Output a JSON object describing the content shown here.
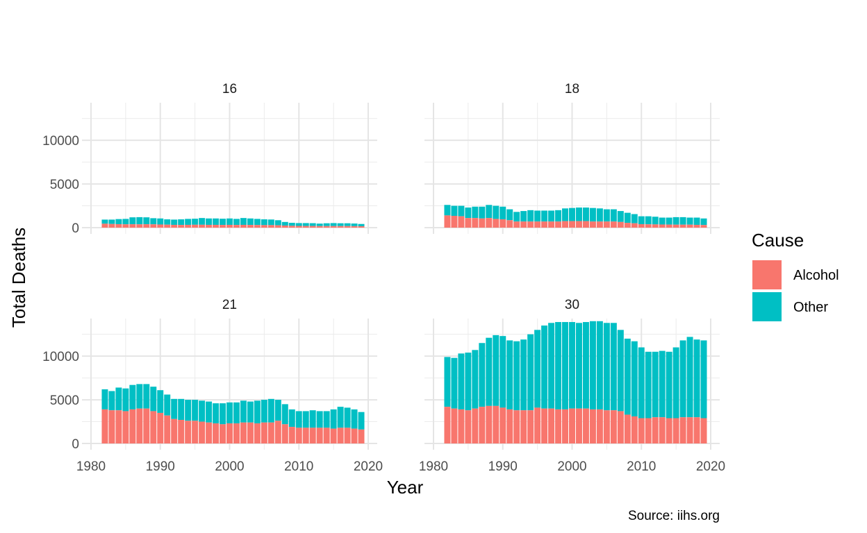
{
  "chart_data": {
    "type": "bar",
    "stacked": true,
    "xlabel": "Year",
    "ylabel": "Total Deaths",
    "caption": "Source: iihs.org",
    "xlim": [
      1980,
      2020
    ],
    "ylim": [
      0,
      14000
    ],
    "x_ticks": [
      1980,
      1990,
      2000,
      2010,
      2020
    ],
    "y_ticks": [
      0,
      5000,
      10000
    ],
    "grid": true,
    "legend": {
      "title": "Cause",
      "position": "right",
      "entries": [
        {
          "name": "Alcohol",
          "color": "#F8766D"
        },
        {
          "name": "Other",
          "color": "#00BFC4"
        }
      ]
    },
    "years": [
      1982,
      1983,
      1984,
      1985,
      1986,
      1987,
      1988,
      1989,
      1990,
      1991,
      1992,
      1993,
      1994,
      1995,
      1996,
      1997,
      1998,
      1999,
      2000,
      2001,
      2002,
      2003,
      2004,
      2005,
      2006,
      2007,
      2008,
      2009,
      2010,
      2011,
      2012,
      2013,
      2014,
      2015,
      2016,
      2017,
      2018,
      2019
    ],
    "panels": [
      {
        "title": "16",
        "alcohol": [
          450,
          420,
          400,
          380,
          390,
          380,
          390,
          380,
          360,
          340,
          320,
          310,
          320,
          330,
          330,
          320,
          320,
          310,
          320,
          310,
          320,
          310,
          300,
          290,
          290,
          270,
          240,
          210,
          200,
          190,
          190,
          180,
          180,
          180,
          180,
          180,
          170,
          160
        ],
        "total": [
          920,
          920,
          980,
          1000,
          1180,
          1200,
          1180,
          1080,
          1050,
          950,
          920,
          950,
          1000,
          1020,
          1100,
          1050,
          1050,
          1020,
          1050,
          1000,
          1100,
          1050,
          1000,
          950,
          930,
          850,
          650,
          550,
          520,
          520,
          510,
          460,
          500,
          520,
          500,
          500,
          470,
          420
        ]
      },
      {
        "title": "18",
        "alcohol": [
          1400,
          1350,
          1300,
          1100,
          1100,
          1050,
          1100,
          1000,
          950,
          850,
          700,
          700,
          700,
          700,
          700,
          700,
          700,
          750,
          750,
          750,
          750,
          700,
          700,
          700,
          700,
          650,
          550,
          500,
          400,
          380,
          370,
          360,
          350,
          340,
          340,
          340,
          320,
          300
        ],
        "total": [
          2600,
          2500,
          2500,
          2300,
          2400,
          2400,
          2600,
          2500,
          2400,
          2100,
          1800,
          1900,
          2000,
          1950,
          1950,
          1950,
          2000,
          2200,
          2250,
          2300,
          2300,
          2250,
          2200,
          2100,
          2100,
          1900,
          1700,
          1550,
          1300,
          1300,
          1250,
          1150,
          1150,
          1200,
          1200,
          1150,
          1150,
          1050
        ]
      },
      {
        "title": "21",
        "alcohol": [
          3900,
          3800,
          3800,
          3700,
          3900,
          4000,
          4000,
          3700,
          3500,
          3200,
          2800,
          2700,
          2600,
          2600,
          2500,
          2400,
          2300,
          2200,
          2300,
          2300,
          2400,
          2400,
          2300,
          2400,
          2400,
          2600,
          2200,
          1900,
          1800,
          1800,
          1800,
          1800,
          1800,
          1700,
          1800,
          1800,
          1700,
          1600
        ],
        "total": [
          6200,
          6000,
          6400,
          6300,
          6700,
          6800,
          6800,
          6500,
          6100,
          5600,
          5100,
          5100,
          5000,
          5000,
          4900,
          4800,
          4600,
          4600,
          4700,
          4700,
          4900,
          4800,
          4900,
          5000,
          5100,
          5000,
          4500,
          3900,
          3700,
          3700,
          3800,
          3700,
          3700,
          3900,
          4200,
          4100,
          3900,
          3600
        ]
      },
      {
        "title": "30",
        "alcohol": [
          4200,
          4000,
          3900,
          3800,
          4000,
          4200,
          4300,
          4300,
          4100,
          3900,
          3800,
          3800,
          3800,
          4100,
          4000,
          4000,
          3900,
          3900,
          4000,
          4000,
          4000,
          3900,
          3900,
          3800,
          3800,
          3700,
          3300,
          3100,
          2900,
          2900,
          3000,
          3000,
          2900,
          2900,
          3000,
          3000,
          3000,
          2900
        ],
        "total": [
          9900,
          9800,
          10300,
          10400,
          10700,
          11500,
          12100,
          12400,
          12300,
          11800,
          11700,
          11900,
          12500,
          13000,
          13500,
          13800,
          13900,
          13900,
          13900,
          13800,
          13900,
          14000,
          14000,
          13800,
          13800,
          13000,
          12000,
          11700,
          11000,
          10500,
          10500,
          10600,
          10500,
          11000,
          11800,
          12200,
          11900,
          11800
        ]
      }
    ]
  }
}
